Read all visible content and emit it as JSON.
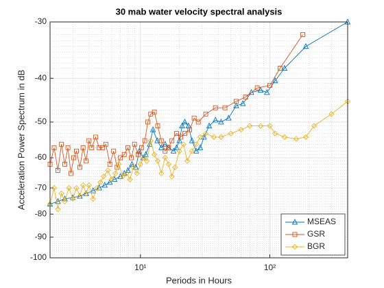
{
  "chart_data": {
    "type": "line",
    "title": "30 mab water velocity spectral analysis",
    "xlabel": "Periods in Hours",
    "ylabel": "Acceleration Power Spectrum in dB",
    "xscale": "log",
    "yscale": "log",
    "xlim": [
      2,
      400
    ],
    "ylim": [
      -100,
      -30
    ],
    "xticks": [
      {
        "value": 10,
        "label": "10¹"
      },
      {
        "value": 100,
        "label": "10²"
      }
    ],
    "yticks": [
      -30,
      -40,
      -50,
      -60,
      -70,
      -80,
      -90,
      -100
    ],
    "grid": true,
    "legend": "southeast",
    "series": [
      {
        "name": "MSEAS",
        "color": "#0072BD",
        "marker": "triangle",
        "x": [
          2,
          2.3,
          2.6,
          3,
          3.4,
          3.8,
          4.3,
          4.8,
          5.3,
          5.8,
          6.3,
          7,
          7.5,
          8,
          8.6,
          9.2,
          9.8,
          10.5,
          11,
          11.8,
          12.5,
          13.5,
          14.5,
          15.5,
          16.5,
          18,
          19,
          20,
          21,
          22,
          23.5,
          25,
          27,
          29,
          31,
          34,
          38,
          42,
          48,
          55,
          62,
          72,
          85,
          95,
          110,
          130,
          190,
          400
        ],
        "values": [
          -76,
          -75,
          -74,
          -73.5,
          -73,
          -72,
          -71,
          -70,
          -69,
          -68,
          -67,
          -66,
          -65,
          -64,
          -62,
          -63,
          -58,
          -60,
          -59,
          -56,
          -52,
          -55,
          -57,
          -56,
          -57,
          -58,
          -57,
          -55,
          -51,
          -50,
          -51,
          -55,
          -58,
          -57,
          -54,
          -51,
          -49.5,
          -50,
          -49,
          -46,
          -45.5,
          -43,
          -42.5,
          -43,
          -40.5,
          -38,
          -34,
          -30
        ]
      },
      {
        "name": "GSR",
        "color": "#D95319",
        "marker": "square",
        "x": [
          2,
          2.15,
          2.3,
          2.45,
          2.6,
          2.75,
          2.9,
          3.05,
          3.2,
          3.4,
          3.6,
          3.8,
          4,
          4.2,
          4.5,
          4.8,
          5.1,
          5.4,
          5.8,
          6.2,
          6.6,
          7,
          7.5,
          8,
          8.5,
          9,
          9.6,
          10.2,
          10.8,
          11.4,
          12,
          12.8,
          13.6,
          14.5,
          15.5,
          16.5,
          17.5,
          19,
          20.5,
          22,
          24,
          26,
          28,
          32,
          38,
          45,
          55,
          65,
          80,
          100,
          120,
          180
        ],
        "values": [
          -62,
          -57,
          -64,
          -56,
          -62,
          -57,
          -65,
          -60,
          -58,
          -63,
          -57,
          -61,
          -55,
          -57,
          -54,
          -57,
          -57,
          -56,
          -62,
          -58,
          -63,
          -60,
          -59,
          -57,
          -60,
          -56,
          -59,
          -57,
          -55,
          -50,
          -48,
          -47.5,
          -51,
          -55,
          -58,
          -57,
          -55,
          -53,
          -54,
          -53,
          -52,
          -49,
          -50,
          -48,
          -46.5,
          -46.5,
          -45,
          -44,
          -42,
          -41.5,
          -38,
          -32
        ]
      },
      {
        "name": "BGR",
        "color": "#EDB120",
        "marker": "diamond",
        "x": [
          2,
          2.15,
          2.3,
          2.45,
          2.6,
          2.8,
          3,
          3.2,
          3.4,
          3.6,
          3.8,
          4,
          4.3,
          4.6,
          4.9,
          5.2,
          5.6,
          6,
          6.4,
          6.8,
          7.3,
          7.8,
          8.3,
          8.8,
          9.4,
          10,
          10.6,
          11.2,
          12,
          12.8,
          13.6,
          14.5,
          15.5,
          16.5,
          17.5,
          18.5,
          20,
          21.5,
          23,
          25,
          27,
          29,
          32,
          37,
          42,
          50,
          60,
          70,
          85,
          100,
          110,
          130,
          160,
          190,
          220,
          300,
          400
        ],
        "values": [
          -76,
          -70,
          -78,
          -72,
          -75,
          -70,
          -74,
          -70,
          -73,
          -69,
          -72,
          -69,
          -74,
          -70,
          -68,
          -66,
          -64,
          -67,
          -65,
          -62,
          -66,
          -65,
          -67,
          -63,
          -65,
          -62,
          -60,
          -61,
          -55,
          -59,
          -61,
          -65,
          -60,
          -62,
          -66,
          -63,
          -58,
          -56,
          -61,
          -58,
          -56,
          -54,
          -53,
          -54,
          -54,
          -53,
          -52,
          -51,
          -51,
          -51,
          -53,
          -54,
          -54.5,
          -54,
          -51,
          -48,
          -45
        ]
      }
    ]
  }
}
